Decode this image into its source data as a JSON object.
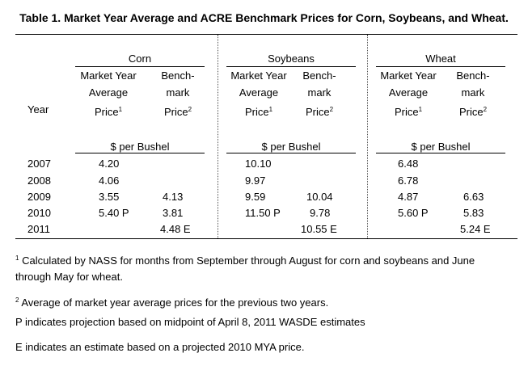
{
  "title": "Table 1. Market Year Average and ACRE Benchmark Prices for Corn, Soybeans, and Wheat.",
  "groups": [
    {
      "name": "Corn"
    },
    {
      "name": "Soybeans"
    },
    {
      "name": "Wheat"
    }
  ],
  "col_headers": {
    "mya": {
      "line1": "Market Year",
      "line2": "Average",
      "line3": "Price",
      "sup": "1"
    },
    "bench": {
      "line1": "Bench-",
      "line2": "mark",
      "line3": "Price",
      "sup": "2"
    }
  },
  "year_label": "Year",
  "unit_label": "$ per Bushel",
  "rows": [
    {
      "year": "2007",
      "cells": [
        "4.20",
        "",
        "10.10",
        "",
        "6.48",
        ""
      ]
    },
    {
      "year": "2008",
      "cells": [
        "4.06",
        "",
        "9.97",
        "",
        "6.78",
        ""
      ]
    },
    {
      "year": "2009",
      "cells": [
        "3.55",
        "4.13",
        "9.59",
        "10.04",
        "4.87",
        "6.63"
      ]
    },
    {
      "year": "2010",
      "cells": [
        "5.40 P",
        "3.81",
        "11.50 P",
        "9.78",
        "5.60 P",
        "5.83"
      ]
    },
    {
      "year": "2011",
      "cells": [
        "",
        "4.48 E",
        "",
        "10.55 E",
        "",
        "5.24 E"
      ]
    }
  ],
  "footnotes": {
    "fn1_mark": "1",
    "fn1_text": "Calculated by NASS for months from September through August for corn and soybeans and June through May for wheat.",
    "fn2_mark": "2",
    "fn2_text": "Average of market year average prices for the previous two years.",
    "p_note": "P indicates projection based on midpoint of April 8, 2011 WASDE estimates",
    "e_note": "E indicates an estimate based on a projected 2010 MYA price."
  }
}
